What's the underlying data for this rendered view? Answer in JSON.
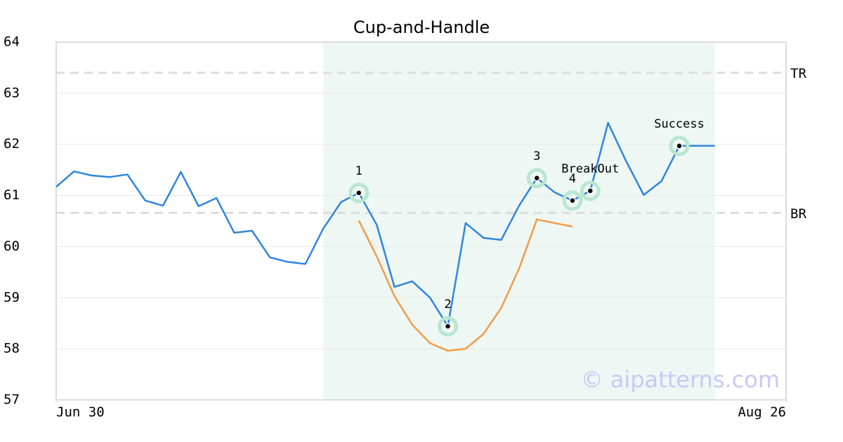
{
  "chart_data": {
    "type": "line",
    "title": "Cup-and-Handle",
    "x": [
      0,
      1,
      2,
      3,
      4,
      5,
      6,
      7,
      8,
      9,
      10,
      11,
      12,
      13,
      14,
      15,
      16,
      17,
      18,
      19,
      20,
      21,
      22,
      23,
      24,
      25,
      26,
      27,
      28,
      29,
      30,
      31,
      32,
      33,
      34,
      35,
      36,
      37
    ],
    "xlim": [
      0,
      41
    ],
    "xticks": [
      {
        "value": 0,
        "label": "Jun 30"
      },
      {
        "value": 41,
        "label": "Aug 26"
      }
    ],
    "ylim": [
      57,
      64
    ],
    "yticks": [
      57,
      58,
      59,
      60,
      61,
      62,
      63,
      64
    ],
    "grid": true,
    "series": [
      {
        "color": "#2e86de",
        "values": [
          61.17,
          61.47,
          61.39,
          61.36,
          61.41,
          60.9,
          60.8,
          61.46,
          60.79,
          60.95,
          60.27,
          60.31,
          59.79,
          59.7,
          59.66,
          60.35,
          60.87,
          61.05,
          60.43,
          59.21,
          59.32,
          59.0,
          58.44,
          60.46,
          60.17,
          60.13,
          60.8,
          61.34,
          61.06,
          60.9,
          61.09,
          62.42,
          61.68,
          61.01,
          61.28,
          61.97,
          61.97,
          61.97
        ]
      },
      {
        "color": "#f39c47",
        "values": [
          null,
          null,
          null,
          null,
          null,
          null,
          null,
          null,
          null,
          null,
          null,
          null,
          null,
          null,
          null,
          null,
          null,
          60.51,
          59.81,
          59.03,
          58.47,
          58.11,
          57.96,
          58.0,
          58.29,
          58.8,
          59.57,
          60.53,
          60.46,
          60.39,
          null,
          null,
          null,
          null,
          null,
          null,
          null,
          null
        ]
      }
    ],
    "levels": [
      {
        "label": "TR",
        "value": 63.4
      },
      {
        "label": "BR",
        "value": 60.66
      }
    ],
    "shade": {
      "x": [
        15,
        37
      ],
      "color": "#eef7f3"
    },
    "points": [
      {
        "label": "1",
        "x": 17
      },
      {
        "label": "2",
        "x": 22
      },
      {
        "label": "3",
        "x": 27
      },
      {
        "label": "4",
        "x": 29
      },
      {
        "label": "BreakOut",
        "x": 30
      },
      {
        "label": "Success",
        "x": 35
      }
    ],
    "watermark": "© aipatterns.com"
  }
}
